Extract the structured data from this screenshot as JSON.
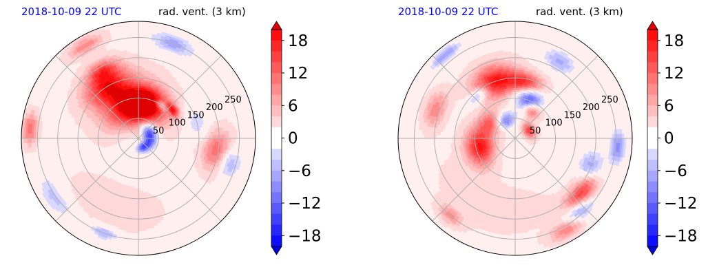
{
  "chart_data": [
    {
      "type": "heatmap",
      "projection": "polar",
      "time_label": "2018-10-09 22 UTC",
      "variable_label": "rad. vent. (3 km)",
      "radial_ticks": [
        50,
        100,
        150,
        200,
        250
      ],
      "radial_max": 290,
      "angular_gridlines_deg": [
        0,
        45,
        90,
        135,
        180,
        225,
        270,
        315
      ],
      "grid": true,
      "colorbar": {
        "ticks": [
          -18,
          -12,
          -6,
          0,
          6,
          12,
          18
        ],
        "range": [
          -20,
          20
        ],
        "step": 2,
        "extend": "both",
        "colors": {
          "negative": "#0000ff",
          "zero": "#ffffff",
          "positive": "#ff0000"
        }
      },
      "features": [
        {
          "r": 70,
          "theta": 95,
          "rw": 45,
          "tw": 55,
          "v": 19
        },
        {
          "r": 95,
          "theta": 80,
          "rw": 35,
          "tw": 30,
          "v": 15
        },
        {
          "r": 150,
          "theta": 122,
          "rw": 40,
          "tw": 22,
          "v": 14
        },
        {
          "r": 190,
          "theta": 118,
          "rw": 25,
          "tw": 12,
          "v": 10
        },
        {
          "r": 120,
          "theta": 105,
          "rw": 55,
          "tw": 40,
          "v": 6
        },
        {
          "r": 30,
          "theta": 20,
          "rw": 18,
          "tw": 60,
          "v": -17
        },
        {
          "r": 25,
          "theta": 300,
          "rw": 12,
          "tw": 40,
          "v": -14
        },
        {
          "r": 110,
          "theta": 40,
          "rw": 12,
          "tw": 10,
          "v": 14
        },
        {
          "r": 100,
          "theta": 55,
          "rw": 10,
          "tw": 12,
          "v": -12
        },
        {
          "r": 200,
          "theta": 350,
          "rw": 35,
          "tw": 14,
          "v": 12
        },
        {
          "r": 230,
          "theta": 345,
          "rw": 30,
          "tw": 10,
          "v": -10
        },
        {
          "r": 250,
          "theta": 70,
          "rw": 22,
          "tw": 12,
          "v": -9
        },
        {
          "r": 265,
          "theta": 120,
          "rw": 18,
          "tw": 10,
          "v": 8
        },
        {
          "r": 255,
          "theta": 215,
          "rw": 25,
          "tw": 15,
          "v": -6
        },
        {
          "r": 250,
          "theta": 250,
          "rw": 15,
          "tw": 8,
          "v": -8
        },
        {
          "r": 270,
          "theta": 175,
          "rw": 18,
          "tw": 8,
          "v": 10
        },
        {
          "r": 150,
          "theta": 15,
          "rw": 25,
          "tw": 14,
          "v": -5
        },
        {
          "r": 180,
          "theta": 250,
          "rw": 60,
          "tw": 40,
          "v": 2
        }
      ]
    },
    {
      "type": "heatmap",
      "projection": "polar",
      "time_label": "2018-10-09 22 UTC",
      "variable_label": "rad. vent. (3 km)",
      "radial_ticks": [
        50,
        100,
        150,
        200,
        250
      ],
      "radial_max": 290,
      "angular_gridlines_deg": [
        0,
        45,
        90,
        135,
        180,
        225,
        270,
        315
      ],
      "grid": true,
      "colorbar": {
        "ticks": [
          -18,
          -12,
          -6,
          0,
          6,
          12,
          18
        ],
        "range": [
          -20,
          20
        ],
        "step": 2,
        "extend": "both",
        "colors": {
          "negative": "#0000ff",
          "zero": "#ffffff",
          "positive": "#ff0000"
        }
      },
      "features": [
        {
          "r": 150,
          "theta": 110,
          "rw": 40,
          "tw": 20,
          "v": 17
        },
        {
          "r": 140,
          "theta": 80,
          "rw": 25,
          "tw": 18,
          "v": 15
        },
        {
          "r": 100,
          "theta": 70,
          "rw": 30,
          "tw": 18,
          "v": -16
        },
        {
          "r": 80,
          "theta": 60,
          "rw": 18,
          "tw": 16,
          "v": 14
        },
        {
          "r": 90,
          "theta": 195,
          "rw": 35,
          "tw": 28,
          "v": 17
        },
        {
          "r": 70,
          "theta": 150,
          "rw": 30,
          "tw": 25,
          "v": 12
        },
        {
          "r": 50,
          "theta": 120,
          "rw": 20,
          "tw": 30,
          "v": -12
        },
        {
          "r": 40,
          "theta": 30,
          "rw": 15,
          "tw": 30,
          "v": 14
        },
        {
          "r": 140,
          "theta": 130,
          "rw": 15,
          "tw": 12,
          "v": -10
        },
        {
          "r": 215,
          "theta": 320,
          "rw": 25,
          "tw": 14,
          "v": 15
        },
        {
          "r": 240,
          "theta": 312,
          "rw": 25,
          "tw": 10,
          "v": -11
        },
        {
          "r": 200,
          "theta": 340,
          "rw": 30,
          "tw": 10,
          "v": -9
        },
        {
          "r": 260,
          "theta": 300,
          "rw": 20,
          "tw": 10,
          "v": 9
        },
        {
          "r": 255,
          "theta": 355,
          "rw": 20,
          "tw": 10,
          "v": -10
        },
        {
          "r": 220,
          "theta": 60,
          "rw": 25,
          "tw": 10,
          "v": -8
        },
        {
          "r": 210,
          "theta": 160,
          "rw": 25,
          "tw": 12,
          "v": 8
        },
        {
          "r": 250,
          "theta": 230,
          "rw": 18,
          "tw": 8,
          "v": 7
        },
        {
          "r": 270,
          "theta": 130,
          "rw": 15,
          "tw": 10,
          "v": -9
        },
        {
          "r": 180,
          "theta": 250,
          "rw": 60,
          "tw": 50,
          "v": 2
        }
      ]
    }
  ]
}
